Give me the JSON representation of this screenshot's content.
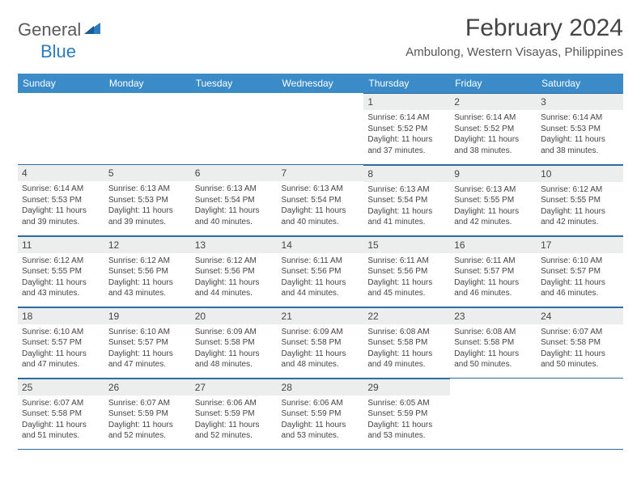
{
  "logo": {
    "part1": "General",
    "part2": "Blue"
  },
  "title": "February 2024",
  "location": "Ambulong, Western Visayas, Philippines",
  "colors": {
    "header_bg": "#3b8bc9",
    "header_text": "#ffffff",
    "daynum_bg": "#eceeee",
    "border": "#2b6ca3",
    "text": "#3a3a3a",
    "logo_accent": "#2b7bbf"
  },
  "day_headers": [
    "Sunday",
    "Monday",
    "Tuesday",
    "Wednesday",
    "Thursday",
    "Friday",
    "Saturday"
  ],
  "weeks": [
    [
      {
        "empty": true
      },
      {
        "empty": true
      },
      {
        "empty": true
      },
      {
        "empty": true
      },
      {
        "day": "1",
        "sunrise": "Sunrise: 6:14 AM",
        "sunset": "Sunset: 5:52 PM",
        "daylight": "Daylight: 11 hours and 37 minutes."
      },
      {
        "day": "2",
        "sunrise": "Sunrise: 6:14 AM",
        "sunset": "Sunset: 5:52 PM",
        "daylight": "Daylight: 11 hours and 38 minutes."
      },
      {
        "day": "3",
        "sunrise": "Sunrise: 6:14 AM",
        "sunset": "Sunset: 5:53 PM",
        "daylight": "Daylight: 11 hours and 38 minutes."
      }
    ],
    [
      {
        "day": "4",
        "sunrise": "Sunrise: 6:14 AM",
        "sunset": "Sunset: 5:53 PM",
        "daylight": "Daylight: 11 hours and 39 minutes."
      },
      {
        "day": "5",
        "sunrise": "Sunrise: 6:13 AM",
        "sunset": "Sunset: 5:53 PM",
        "daylight": "Daylight: 11 hours and 39 minutes."
      },
      {
        "day": "6",
        "sunrise": "Sunrise: 6:13 AM",
        "sunset": "Sunset: 5:54 PM",
        "daylight": "Daylight: 11 hours and 40 minutes."
      },
      {
        "day": "7",
        "sunrise": "Sunrise: 6:13 AM",
        "sunset": "Sunset: 5:54 PM",
        "daylight": "Daylight: 11 hours and 40 minutes."
      },
      {
        "day": "8",
        "sunrise": "Sunrise: 6:13 AM",
        "sunset": "Sunset: 5:54 PM",
        "daylight": "Daylight: 11 hours and 41 minutes."
      },
      {
        "day": "9",
        "sunrise": "Sunrise: 6:13 AM",
        "sunset": "Sunset: 5:55 PM",
        "daylight": "Daylight: 11 hours and 42 minutes."
      },
      {
        "day": "10",
        "sunrise": "Sunrise: 6:12 AM",
        "sunset": "Sunset: 5:55 PM",
        "daylight": "Daylight: 11 hours and 42 minutes."
      }
    ],
    [
      {
        "day": "11",
        "sunrise": "Sunrise: 6:12 AM",
        "sunset": "Sunset: 5:55 PM",
        "daylight": "Daylight: 11 hours and 43 minutes."
      },
      {
        "day": "12",
        "sunrise": "Sunrise: 6:12 AM",
        "sunset": "Sunset: 5:56 PM",
        "daylight": "Daylight: 11 hours and 43 minutes."
      },
      {
        "day": "13",
        "sunrise": "Sunrise: 6:12 AM",
        "sunset": "Sunset: 5:56 PM",
        "daylight": "Daylight: 11 hours and 44 minutes."
      },
      {
        "day": "14",
        "sunrise": "Sunrise: 6:11 AM",
        "sunset": "Sunset: 5:56 PM",
        "daylight": "Daylight: 11 hours and 44 minutes."
      },
      {
        "day": "15",
        "sunrise": "Sunrise: 6:11 AM",
        "sunset": "Sunset: 5:56 PM",
        "daylight": "Daylight: 11 hours and 45 minutes."
      },
      {
        "day": "16",
        "sunrise": "Sunrise: 6:11 AM",
        "sunset": "Sunset: 5:57 PM",
        "daylight": "Daylight: 11 hours and 46 minutes."
      },
      {
        "day": "17",
        "sunrise": "Sunrise: 6:10 AM",
        "sunset": "Sunset: 5:57 PM",
        "daylight": "Daylight: 11 hours and 46 minutes."
      }
    ],
    [
      {
        "day": "18",
        "sunrise": "Sunrise: 6:10 AM",
        "sunset": "Sunset: 5:57 PM",
        "daylight": "Daylight: 11 hours and 47 minutes."
      },
      {
        "day": "19",
        "sunrise": "Sunrise: 6:10 AM",
        "sunset": "Sunset: 5:57 PM",
        "daylight": "Daylight: 11 hours and 47 minutes."
      },
      {
        "day": "20",
        "sunrise": "Sunrise: 6:09 AM",
        "sunset": "Sunset: 5:58 PM",
        "daylight": "Daylight: 11 hours and 48 minutes."
      },
      {
        "day": "21",
        "sunrise": "Sunrise: 6:09 AM",
        "sunset": "Sunset: 5:58 PM",
        "daylight": "Daylight: 11 hours and 48 minutes."
      },
      {
        "day": "22",
        "sunrise": "Sunrise: 6:08 AM",
        "sunset": "Sunset: 5:58 PM",
        "daylight": "Daylight: 11 hours and 49 minutes."
      },
      {
        "day": "23",
        "sunrise": "Sunrise: 6:08 AM",
        "sunset": "Sunset: 5:58 PM",
        "daylight": "Daylight: 11 hours and 50 minutes."
      },
      {
        "day": "24",
        "sunrise": "Sunrise: 6:07 AM",
        "sunset": "Sunset: 5:58 PM",
        "daylight": "Daylight: 11 hours and 50 minutes."
      }
    ],
    [
      {
        "day": "25",
        "sunrise": "Sunrise: 6:07 AM",
        "sunset": "Sunset: 5:58 PM",
        "daylight": "Daylight: 11 hours and 51 minutes."
      },
      {
        "day": "26",
        "sunrise": "Sunrise: 6:07 AM",
        "sunset": "Sunset: 5:59 PM",
        "daylight": "Daylight: 11 hours and 52 minutes."
      },
      {
        "day": "27",
        "sunrise": "Sunrise: 6:06 AM",
        "sunset": "Sunset: 5:59 PM",
        "daylight": "Daylight: 11 hours and 52 minutes."
      },
      {
        "day": "28",
        "sunrise": "Sunrise: 6:06 AM",
        "sunset": "Sunset: 5:59 PM",
        "daylight": "Daylight: 11 hours and 53 minutes."
      },
      {
        "day": "29",
        "sunrise": "Sunrise: 6:05 AM",
        "sunset": "Sunset: 5:59 PM",
        "daylight": "Daylight: 11 hours and 53 minutes."
      },
      {
        "empty": true
      },
      {
        "empty": true
      }
    ]
  ]
}
